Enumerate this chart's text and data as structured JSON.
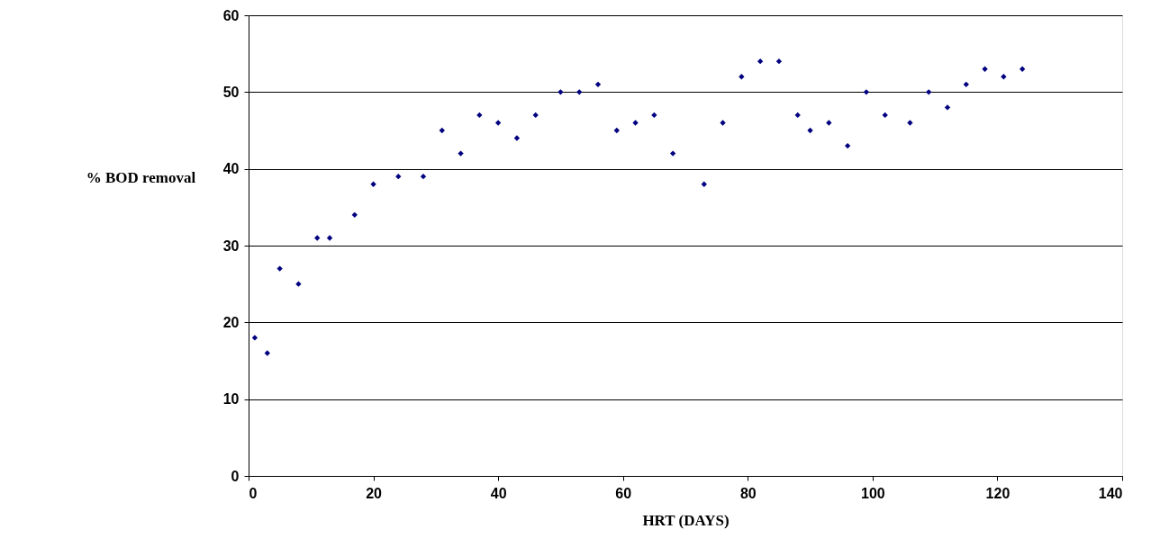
{
  "chart_data": {
    "type": "scatter",
    "xlabel": "HRT (DAYS)",
    "ylabel": "% BOD removal",
    "xlim": [
      0,
      140
    ],
    "xticks": [
      0,
      20,
      40,
      60,
      80,
      100,
      120,
      140
    ],
    "ylim": [
      0,
      60
    ],
    "yticks": [
      0,
      10,
      20,
      30,
      40,
      50,
      60
    ],
    "grid": "y",
    "marker": "diamond",
    "legend": false,
    "x": [
      1,
      3,
      5,
      8,
      11,
      13,
      17,
      20,
      24,
      28,
      31,
      34,
      37,
      40,
      43,
      46,
      50,
      53,
      56,
      59,
      62,
      65,
      68,
      73,
      76,
      79,
      82,
      85,
      88,
      90,
      93,
      96,
      99,
      102,
      106,
      109,
      112,
      115,
      118,
      121,
      124
    ],
    "series": [
      {
        "color": "#000080",
        "values": [
          18,
          16,
          27,
          25,
          31,
          31,
          34,
          38,
          39,
          39,
          45,
          42,
          47,
          46,
          44,
          47,
          50,
          50,
          51,
          45,
          46,
          47,
          42,
          38,
          46,
          52,
          54,
          54,
          47,
          45,
          46,
          43,
          50,
          47,
          46,
          50,
          48,
          51,
          53,
          52,
          53
        ]
      }
    ]
  }
}
